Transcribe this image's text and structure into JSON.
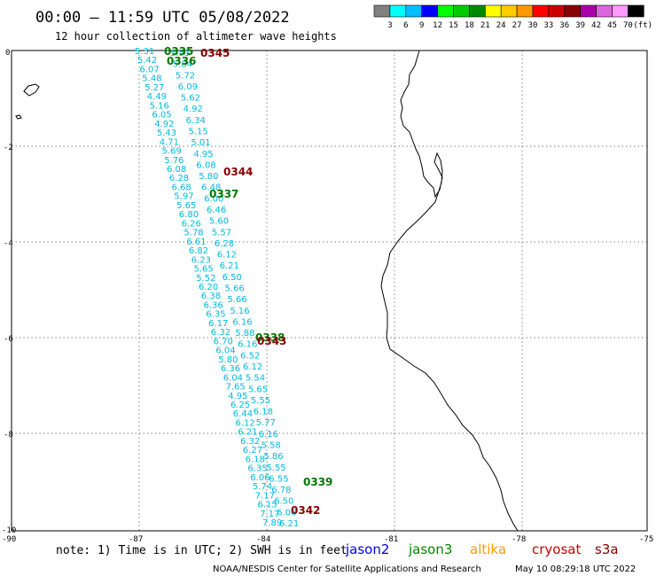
{
  "header": {
    "title": "00:00 – 11:59 UTC 05/08/2022",
    "subtitle": "12 hour collection of altimeter wave heights"
  },
  "legend": {
    "colors": [
      "#808080",
      "#00ffff",
      "#00bfff",
      "#0000ff",
      "#00ff00",
      "#00cc00",
      "#008800",
      "#ffff00",
      "#ffcc00",
      "#ff9900",
      "#ff0000",
      "#cc0000",
      "#880000",
      "#aa00aa",
      "#dd66dd",
      "#ff99ff",
      "#000000"
    ],
    "labels": [
      "3",
      "6",
      "9",
      "12",
      "15",
      "18",
      "21",
      "24",
      "27",
      "30",
      "33",
      "36",
      "39",
      "42",
      "45",
      "70"
    ],
    "unit": "(ft)"
  },
  "axes": {
    "lat_labels": [
      "0",
      "-2",
      "-4",
      "-6",
      "-8",
      "-10"
    ],
    "lon_labels": [
      "-90",
      "-87",
      "-84",
      "-81",
      "-78",
      "-75"
    ]
  },
  "pass_labels": [
    {
      "text": "0335",
      "color": "#007700"
    },
    {
      "text": "0336",
      "color": "#007700"
    },
    {
      "text": "0345",
      "color": "#880000"
    },
    {
      "text": "0344",
      "color": "#880000"
    },
    {
      "text": "0337",
      "color": "#007700"
    },
    {
      "text": "0338",
      "color": "#007700"
    },
    {
      "text": "0343",
      "color": "#880000"
    },
    {
      "text": "0339",
      "color": "#007700"
    },
    {
      "text": "0342",
      "color": "#880000"
    }
  ],
  "track_a": [
    "5.31",
    "5.42",
    "6.07",
    "5.48",
    "5.27",
    "4.49",
    "5.16",
    "6.05",
    "4.92",
    "5.43",
    "4.71",
    "5.69",
    "5.76",
    "6.08",
    "6.28",
    "6.68",
    "5.97",
    "5.65",
    "6.80",
    "6.26",
    "5.78",
    "6.61",
    "6.82",
    "6.23",
    "5.65",
    "5.52",
    "6.20",
    "6.38",
    "6.36",
    "6.35",
    "6.17",
    "6.32",
    "6.70",
    "6.04",
    "5.80",
    "6.36",
    "6.04",
    "7.65",
    "4.95",
    "6.25",
    "6.44",
    "6.12",
    "6.21",
    "6.32",
    "6.27",
    "6.18",
    "6.35",
    "6.06",
    "5.74",
    "7.17",
    "6.15",
    "7.17",
    "7.89"
  ],
  "track_b": [
    "5.53",
    "5.84",
    "5.72",
    "6.09",
    "5.62",
    "4.92",
    "6.34",
    "5.15",
    "5.01",
    "4.95",
    "6.08",
    "5.80",
    "6.48",
    "6.00",
    "6.46",
    "5.60",
    "5.57",
    "6.28",
    "6.12",
    "6.21",
    "6.50",
    "5.66",
    "5.66",
    "5.16",
    "6.16",
    "5.88",
    "6.16",
    "6.52",
    "6.12",
    "5.54",
    "5.65",
    "5.55",
    "6.18",
    "5.77",
    "6.16",
    "5.58",
    "5.86",
    "5.55",
    "6.55",
    "6.78",
    "6.50",
    "6.06",
    "6.21"
  ],
  "notes": {
    "note": "note:  1) Time is in UTC; 2) SWH is in feet",
    "credit": "NOAA/NESDIS Center for Satellite Applications and Research",
    "timestamp": "May 10 08:29:18 UTC 2022"
  },
  "satellites": [
    {
      "name": "jason2",
      "color": "#0000ee"
    },
    {
      "name": "jason3",
      "color": "#008800"
    },
    {
      "name": "altika",
      "color": "#ff9900"
    },
    {
      "name": "cryosat",
      "color": "#cc0000"
    },
    {
      "name": "s3a",
      "color": "#880000"
    }
  ]
}
